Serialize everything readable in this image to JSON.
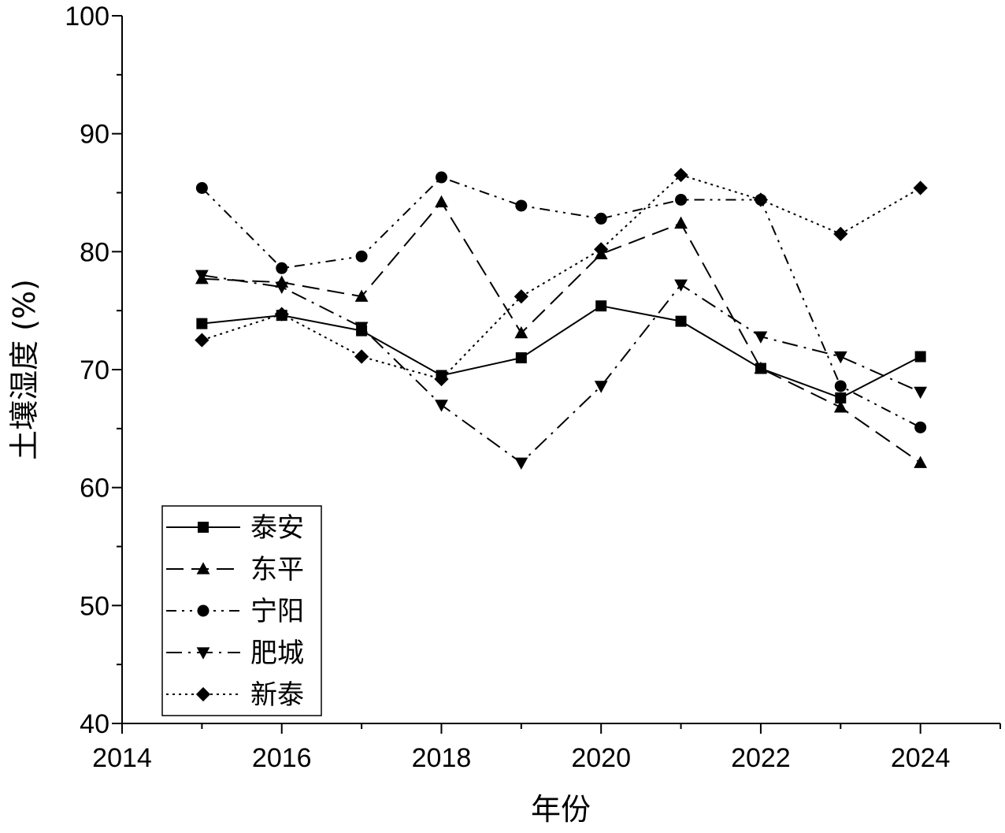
{
  "chart_data": {
    "type": "line",
    "xlabel": "年份",
    "ylabel": "土壤湿度 (%)",
    "xlim": [
      2014,
      2025
    ],
    "ylim": [
      40,
      100
    ],
    "xticks": [
      "2014",
      "2016",
      "2018",
      "2020",
      "2022",
      "2024"
    ],
    "yticks": [
      "40",
      "50",
      "60",
      "70",
      "80",
      "90",
      "100"
    ],
    "grid": false,
    "legend_position": "bottom-left",
    "x": [
      2015,
      2016,
      2017,
      2018,
      2019,
      2020,
      2021,
      2022,
      2023,
      2024
    ],
    "series": [
      {
        "name": "泰安",
        "marker": "square",
        "line_style": "solid",
        "values": [
          73.9,
          74.6,
          73.3,
          69.5,
          71.0,
          75.4,
          74.1,
          70.1,
          67.6,
          71.1
        ]
      },
      {
        "name": "东平",
        "marker": "triangle-up",
        "line_style": "dash",
        "values": [
          77.7,
          77.4,
          76.2,
          84.2,
          73.1,
          79.8,
          82.4,
          70.1,
          66.8,
          62.1
        ]
      },
      {
        "name": "宁阳",
        "marker": "circle",
        "line_style": "dash-dot-dot",
        "values": [
          85.4,
          78.6,
          79.6,
          86.3,
          83.9,
          82.8,
          84.4,
          84.4,
          68.6,
          65.1
        ]
      },
      {
        "name": "肥城",
        "marker": "triangle-down",
        "line_style": "dash-dot",
        "values": [
          78.0,
          77.0,
          73.6,
          67.0,
          62.1,
          68.6,
          77.2,
          72.8,
          71.1,
          68.1
        ]
      },
      {
        "name": "新泰",
        "marker": "diamond",
        "line_style": "dot",
        "values": [
          72.5,
          74.7,
          71.1,
          69.2,
          76.2,
          80.2,
          86.5,
          84.4,
          81.5,
          85.4
        ]
      }
    ]
  }
}
